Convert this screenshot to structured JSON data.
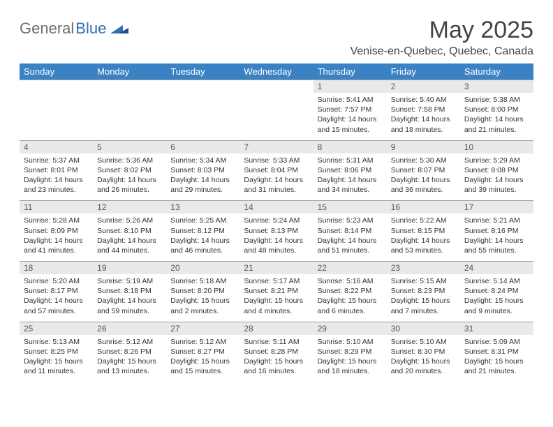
{
  "logo": {
    "part1": "General",
    "part2": "Blue"
  },
  "title": "May 2025",
  "location": "Venise-en-Quebec, Quebec, Canada",
  "colors": {
    "header_bg": "#3b82c4",
    "header_text": "#ffffff",
    "daynum_bg": "#e9e9e9",
    "border": "#9aa0a6",
    "logo_gray": "#6d6d6d",
    "logo_blue": "#2f6fb3",
    "text": "#333333",
    "page_bg": "#ffffff"
  },
  "weekdays": [
    "Sunday",
    "Monday",
    "Tuesday",
    "Wednesday",
    "Thursday",
    "Friday",
    "Saturday"
  ],
  "weeks": [
    {
      "nums": [
        "",
        "",
        "",
        "",
        "1",
        "2",
        "3"
      ],
      "info": [
        null,
        null,
        null,
        null,
        {
          "sunrise": "Sunrise: 5:41 AM",
          "sunset": "Sunset: 7:57 PM",
          "daylight": "Daylight: 14 hours and 15 minutes."
        },
        {
          "sunrise": "Sunrise: 5:40 AM",
          "sunset": "Sunset: 7:58 PM",
          "daylight": "Daylight: 14 hours and 18 minutes."
        },
        {
          "sunrise": "Sunrise: 5:38 AM",
          "sunset": "Sunset: 8:00 PM",
          "daylight": "Daylight: 14 hours and 21 minutes."
        }
      ]
    },
    {
      "nums": [
        "4",
        "5",
        "6",
        "7",
        "8",
        "9",
        "10"
      ],
      "info": [
        {
          "sunrise": "Sunrise: 5:37 AM",
          "sunset": "Sunset: 8:01 PM",
          "daylight": "Daylight: 14 hours and 23 minutes."
        },
        {
          "sunrise": "Sunrise: 5:36 AM",
          "sunset": "Sunset: 8:02 PM",
          "daylight": "Daylight: 14 hours and 26 minutes."
        },
        {
          "sunrise": "Sunrise: 5:34 AM",
          "sunset": "Sunset: 8:03 PM",
          "daylight": "Daylight: 14 hours and 29 minutes."
        },
        {
          "sunrise": "Sunrise: 5:33 AM",
          "sunset": "Sunset: 8:04 PM",
          "daylight": "Daylight: 14 hours and 31 minutes."
        },
        {
          "sunrise": "Sunrise: 5:31 AM",
          "sunset": "Sunset: 8:06 PM",
          "daylight": "Daylight: 14 hours and 34 minutes."
        },
        {
          "sunrise": "Sunrise: 5:30 AM",
          "sunset": "Sunset: 8:07 PM",
          "daylight": "Daylight: 14 hours and 36 minutes."
        },
        {
          "sunrise": "Sunrise: 5:29 AM",
          "sunset": "Sunset: 8:08 PM",
          "daylight": "Daylight: 14 hours and 39 minutes."
        }
      ]
    },
    {
      "nums": [
        "11",
        "12",
        "13",
        "14",
        "15",
        "16",
        "17"
      ],
      "info": [
        {
          "sunrise": "Sunrise: 5:28 AM",
          "sunset": "Sunset: 8:09 PM",
          "daylight": "Daylight: 14 hours and 41 minutes."
        },
        {
          "sunrise": "Sunrise: 5:26 AM",
          "sunset": "Sunset: 8:10 PM",
          "daylight": "Daylight: 14 hours and 44 minutes."
        },
        {
          "sunrise": "Sunrise: 5:25 AM",
          "sunset": "Sunset: 8:12 PM",
          "daylight": "Daylight: 14 hours and 46 minutes."
        },
        {
          "sunrise": "Sunrise: 5:24 AM",
          "sunset": "Sunset: 8:13 PM",
          "daylight": "Daylight: 14 hours and 48 minutes."
        },
        {
          "sunrise": "Sunrise: 5:23 AM",
          "sunset": "Sunset: 8:14 PM",
          "daylight": "Daylight: 14 hours and 51 minutes."
        },
        {
          "sunrise": "Sunrise: 5:22 AM",
          "sunset": "Sunset: 8:15 PM",
          "daylight": "Daylight: 14 hours and 53 minutes."
        },
        {
          "sunrise": "Sunrise: 5:21 AM",
          "sunset": "Sunset: 8:16 PM",
          "daylight": "Daylight: 14 hours and 55 minutes."
        }
      ]
    },
    {
      "nums": [
        "18",
        "19",
        "20",
        "21",
        "22",
        "23",
        "24"
      ],
      "info": [
        {
          "sunrise": "Sunrise: 5:20 AM",
          "sunset": "Sunset: 8:17 PM",
          "daylight": "Daylight: 14 hours and 57 minutes."
        },
        {
          "sunrise": "Sunrise: 5:19 AM",
          "sunset": "Sunset: 8:18 PM",
          "daylight": "Daylight: 14 hours and 59 minutes."
        },
        {
          "sunrise": "Sunrise: 5:18 AM",
          "sunset": "Sunset: 8:20 PM",
          "daylight": "Daylight: 15 hours and 2 minutes."
        },
        {
          "sunrise": "Sunrise: 5:17 AM",
          "sunset": "Sunset: 8:21 PM",
          "daylight": "Daylight: 15 hours and 4 minutes."
        },
        {
          "sunrise": "Sunrise: 5:16 AM",
          "sunset": "Sunset: 8:22 PM",
          "daylight": "Daylight: 15 hours and 6 minutes."
        },
        {
          "sunrise": "Sunrise: 5:15 AM",
          "sunset": "Sunset: 8:23 PM",
          "daylight": "Daylight: 15 hours and 7 minutes."
        },
        {
          "sunrise": "Sunrise: 5:14 AM",
          "sunset": "Sunset: 8:24 PM",
          "daylight": "Daylight: 15 hours and 9 minutes."
        }
      ]
    },
    {
      "nums": [
        "25",
        "26",
        "27",
        "28",
        "29",
        "30",
        "31"
      ],
      "info": [
        {
          "sunrise": "Sunrise: 5:13 AM",
          "sunset": "Sunset: 8:25 PM",
          "daylight": "Daylight: 15 hours and 11 minutes."
        },
        {
          "sunrise": "Sunrise: 5:12 AM",
          "sunset": "Sunset: 8:26 PM",
          "daylight": "Daylight: 15 hours and 13 minutes."
        },
        {
          "sunrise": "Sunrise: 5:12 AM",
          "sunset": "Sunset: 8:27 PM",
          "daylight": "Daylight: 15 hours and 15 minutes."
        },
        {
          "sunrise": "Sunrise: 5:11 AM",
          "sunset": "Sunset: 8:28 PM",
          "daylight": "Daylight: 15 hours and 16 minutes."
        },
        {
          "sunrise": "Sunrise: 5:10 AM",
          "sunset": "Sunset: 8:29 PM",
          "daylight": "Daylight: 15 hours and 18 minutes."
        },
        {
          "sunrise": "Sunrise: 5:10 AM",
          "sunset": "Sunset: 8:30 PM",
          "daylight": "Daylight: 15 hours and 20 minutes."
        },
        {
          "sunrise": "Sunrise: 5:09 AM",
          "sunset": "Sunset: 8:31 PM",
          "daylight": "Daylight: 15 hours and 21 minutes."
        }
      ]
    }
  ]
}
